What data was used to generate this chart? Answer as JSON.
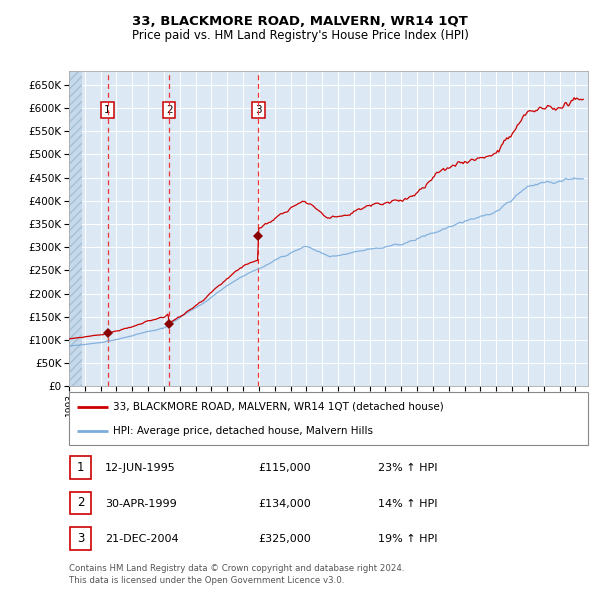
{
  "title": "33, BLACKMORE ROAD, MALVERN, WR14 1QT",
  "subtitle": "Price paid vs. HM Land Registry's House Price Index (HPI)",
  "legend_line1": "33, BLACKMORE ROAD, MALVERN, WR14 1QT (detached house)",
  "legend_line2": "HPI: Average price, detached house, Malvern Hills",
  "transactions": [
    {
      "num": 1,
      "date": "12-JUN-1995",
      "price": 115000,
      "pct": "23%",
      "dir": "↑"
    },
    {
      "num": 2,
      "date": "30-APR-1999",
      "price": 134000,
      "pct": "14%",
      "dir": "↑"
    },
    {
      "num": 3,
      "date": "21-DEC-2004",
      "price": 325000,
      "pct": "19%",
      "dir": "↑"
    }
  ],
  "transaction_dates_decimal": [
    1995.44,
    1999.33,
    2004.97
  ],
  "transaction_prices": [
    115000,
    134000,
    325000
  ],
  "ylim": [
    0,
    680000
  ],
  "yticks": [
    0,
    50000,
    100000,
    150000,
    200000,
    250000,
    300000,
    350000,
    400000,
    450000,
    500000,
    550000,
    600000,
    650000
  ],
  "xlim_start": 1993.0,
  "xlim_end": 2025.8,
  "background_color": "#dce9f5",
  "grid_color": "#ffffff",
  "red_line_color": "#cc0000",
  "blue_line_color": "#7aabdb",
  "dashed_line_color": "#ee3333",
  "marker_color": "#880000",
  "footnote": "Contains HM Land Registry data © Crown copyright and database right 2024.\nThis data is licensed under the Open Government Licence v3.0."
}
